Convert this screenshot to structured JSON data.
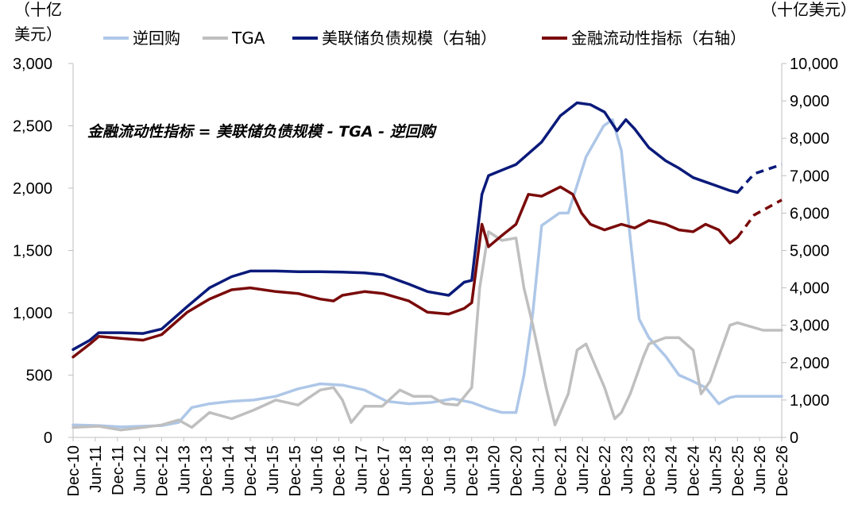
{
  "chart_data": {
    "type": "line",
    "left_axis_unit_line1": "（十亿",
    "left_axis_unit_line2": "美元）",
    "right_axis_unit": "（十亿美元）",
    "annotation": "金融流动性指标 = 美联储负债规模 - TGA - 逆回购",
    "left_axis": {
      "ticks": [
        "0",
        "500",
        "1,000",
        "1,500",
        "2,000",
        "2,500",
        "3,000"
      ],
      "ylim": [
        0,
        3000
      ]
    },
    "right_axis": {
      "ticks": [
        "0",
        "1,000",
        "2,000",
        "3,000",
        "4,000",
        "5,000",
        "6,000",
        "7,000",
        "8,000",
        "9,000",
        "10,000"
      ],
      "ylim": [
        0,
        10000
      ]
    },
    "x_ticks": [
      "Dec-10",
      "Jun-11",
      "Dec-11",
      "Jun-12",
      "Dec-12",
      "Jun-13",
      "Dec-13",
      "Jun-14",
      "Dec-14",
      "Jun-15",
      "Dec-15",
      "Jun-16",
      "Dec-16",
      "Jun-17",
      "Dec-17",
      "Jun-18",
      "Dec-18",
      "Jun-19",
      "Dec-19",
      "Jun-20",
      "Dec-20",
      "Jun-21",
      "Dec-21",
      "Jun-22",
      "Dec-22",
      "Jun-23",
      "Dec-23",
      "Jun-24",
      "Dec-24",
      "Jun-25",
      "Dec-25",
      "Jun-26",
      "Dec-26"
    ],
    "legend": [
      "逆回购",
      "TGA",
      "美联储负债规模（右轴）",
      "金融流动性指标（右轴）"
    ],
    "series": [
      {
        "name": "逆回购",
        "axis": "left",
        "color": "#aec7e8",
        "points": [
          [
            2010.92,
            100
          ],
          [
            2011.5,
            95
          ],
          [
            2012,
            85
          ],
          [
            2012.5,
            90
          ],
          [
            2012.92,
            95
          ],
          [
            2013.3,
            120
          ],
          [
            2013.6,
            240
          ],
          [
            2014,
            270
          ],
          [
            2014.5,
            290
          ],
          [
            2015,
            300
          ],
          [
            2015.5,
            330
          ],
          [
            2016,
            390
          ],
          [
            2016.5,
            430
          ],
          [
            2017,
            420
          ],
          [
            2017.5,
            380
          ],
          [
            2018,
            290
          ],
          [
            2018.5,
            270
          ],
          [
            2019,
            280
          ],
          [
            2019.5,
            310
          ],
          [
            2019.92,
            280
          ],
          [
            2020.3,
            230
          ],
          [
            2020.6,
            200
          ],
          [
            2020.92,
            200
          ],
          [
            2021.1,
            500
          ],
          [
            2021.3,
            1000
          ],
          [
            2021.5,
            1700
          ],
          [
            2021.9,
            1800
          ],
          [
            2022.1,
            1800
          ],
          [
            2022.5,
            2250
          ],
          [
            2022.9,
            2500
          ],
          [
            2023.1,
            2550
          ],
          [
            2023.3,
            2300
          ],
          [
            2023.5,
            1600
          ],
          [
            2023.7,
            950
          ],
          [
            2023.92,
            800
          ],
          [
            2024.3,
            650
          ],
          [
            2024.6,
            500
          ],
          [
            2024.92,
            450
          ],
          [
            2025.2,
            400
          ],
          [
            2025.5,
            270
          ],
          [
            2025.75,
            320
          ],
          [
            2025.9,
            330
          ],
          [
            2026.92,
            330
          ]
        ]
      },
      {
        "name": "TGA",
        "axis": "left",
        "color": "#bfbfbf",
        "points": [
          [
            2010.92,
            80
          ],
          [
            2011.5,
            90
          ],
          [
            2012,
            60
          ],
          [
            2012.5,
            80
          ],
          [
            2012.92,
            100
          ],
          [
            2013.3,
            140
          ],
          [
            2013.6,
            80
          ],
          [
            2014,
            200
          ],
          [
            2014.5,
            150
          ],
          [
            2015,
            220
          ],
          [
            2015.5,
            300
          ],
          [
            2016,
            260
          ],
          [
            2016.5,
            380
          ],
          [
            2016.8,
            400
          ],
          [
            2017,
            300
          ],
          [
            2017.2,
            120
          ],
          [
            2017.5,
            250
          ],
          [
            2017.9,
            250
          ],
          [
            2018.3,
            380
          ],
          [
            2018.6,
            330
          ],
          [
            2019,
            330
          ],
          [
            2019.3,
            270
          ],
          [
            2019.6,
            260
          ],
          [
            2019.92,
            400
          ],
          [
            2020.1,
            1200
          ],
          [
            2020.3,
            1650
          ],
          [
            2020.6,
            1580
          ],
          [
            2020.92,
            1600
          ],
          [
            2021.1,
            1200
          ],
          [
            2021.3,
            900
          ],
          [
            2021.6,
            400
          ],
          [
            2021.8,
            100
          ],
          [
            2022.1,
            350
          ],
          [
            2022.3,
            700
          ],
          [
            2022.5,
            750
          ],
          [
            2022.8,
            500
          ],
          [
            2022.92,
            400
          ],
          [
            2023.15,
            150
          ],
          [
            2023.3,
            200
          ],
          [
            2023.5,
            350
          ],
          [
            2023.8,
            650
          ],
          [
            2023.92,
            750
          ],
          [
            2024.3,
            800
          ],
          [
            2024.6,
            800
          ],
          [
            2024.92,
            700
          ],
          [
            2025.1,
            350
          ],
          [
            2025.3,
            450
          ],
          [
            2025.5,
            650
          ],
          [
            2025.75,
            900
          ],
          [
            2025.92,
            920
          ],
          [
            2026.5,
            860
          ],
          [
            2026.92,
            860
          ]
        ]
      },
      {
        "name": "美联储负债规模（右轴）",
        "axis": "right",
        "color": "#0a1a7a",
        "points": [
          [
            2010.92,
            2350
          ],
          [
            2011.3,
            2600
          ],
          [
            2011.5,
            2800
          ],
          [
            2012,
            2800
          ],
          [
            2012.5,
            2780
          ],
          [
            2012.92,
            2900
          ],
          [
            2013.5,
            3500
          ],
          [
            2014,
            4000
          ],
          [
            2014.5,
            4300
          ],
          [
            2014.92,
            4450
          ],
          [
            2015.5,
            4450
          ],
          [
            2016,
            4430
          ],
          [
            2016.5,
            4430
          ],
          [
            2017,
            4420
          ],
          [
            2017.5,
            4400
          ],
          [
            2017.92,
            4350
          ],
          [
            2018.5,
            4100
          ],
          [
            2018.92,
            3900
          ],
          [
            2019.4,
            3800
          ],
          [
            2019.75,
            4150
          ],
          [
            2019.92,
            4200
          ],
          [
            2020.15,
            6500
          ],
          [
            2020.3,
            7000
          ],
          [
            2020.5,
            7100
          ],
          [
            2020.92,
            7300
          ],
          [
            2021.5,
            7900
          ],
          [
            2021.92,
            8600
          ],
          [
            2022.3,
            8950
          ],
          [
            2022.6,
            8900
          ],
          [
            2022.92,
            8700
          ],
          [
            2023.2,
            8200
          ],
          [
            2023.4,
            8500
          ],
          [
            2023.6,
            8250
          ],
          [
            2023.92,
            7750
          ],
          [
            2024.3,
            7400
          ],
          [
            2024.6,
            7200
          ],
          [
            2024.92,
            6950
          ],
          [
            2025.4,
            6750
          ],
          [
            2025.75,
            6600
          ],
          [
            2025.92,
            6550
          ]
        ]
      },
      {
        "name": "美联储负债规模（右轴）预测",
        "axis": "right",
        "color": "#0a1a7a",
        "dashed": true,
        "points": [
          [
            2025.92,
            6550
          ],
          [
            2026.3,
            7050
          ],
          [
            2026.92,
            7300
          ]
        ]
      },
      {
        "name": "金融流动性指标（右轴）",
        "axis": "right",
        "color": "#7a0a0a",
        "points": [
          [
            2010.92,
            2150
          ],
          [
            2011.3,
            2500
          ],
          [
            2011.5,
            2700
          ],
          [
            2012,
            2650
          ],
          [
            2012.5,
            2600
          ],
          [
            2012.92,
            2750
          ],
          [
            2013.5,
            3350
          ],
          [
            2014,
            3700
          ],
          [
            2014.5,
            3950
          ],
          [
            2014.92,
            4000
          ],
          [
            2015.5,
            3900
          ],
          [
            2016,
            3850
          ],
          [
            2016.5,
            3700
          ],
          [
            2016.8,
            3650
          ],
          [
            2017,
            3800
          ],
          [
            2017.5,
            3900
          ],
          [
            2017.92,
            3850
          ],
          [
            2018.5,
            3650
          ],
          [
            2018.92,
            3350
          ],
          [
            2019.4,
            3300
          ],
          [
            2019.75,
            3450
          ],
          [
            2019.92,
            3600
          ],
          [
            2020.15,
            5700
          ],
          [
            2020.3,
            5100
          ],
          [
            2020.6,
            5400
          ],
          [
            2020.92,
            5700
          ],
          [
            2021.2,
            6500
          ],
          [
            2021.5,
            6450
          ],
          [
            2021.92,
            6700
          ],
          [
            2022.2,
            6500
          ],
          [
            2022.4,
            6000
          ],
          [
            2022.6,
            5700
          ],
          [
            2022.92,
            5550
          ],
          [
            2023.3,
            5700
          ],
          [
            2023.6,
            5600
          ],
          [
            2023.92,
            5800
          ],
          [
            2024.3,
            5700
          ],
          [
            2024.6,
            5550
          ],
          [
            2024.92,
            5500
          ],
          [
            2025.2,
            5700
          ],
          [
            2025.5,
            5550
          ],
          [
            2025.75,
            5200
          ],
          [
            2025.92,
            5350
          ]
        ]
      },
      {
        "name": "金融流动性指标（右轴）预测",
        "axis": "right",
        "color": "#7a0a0a",
        "dashed": true,
        "points": [
          [
            2025.92,
            5350
          ],
          [
            2026.3,
            5950
          ],
          [
            2026.92,
            6350
          ]
        ]
      }
    ]
  }
}
